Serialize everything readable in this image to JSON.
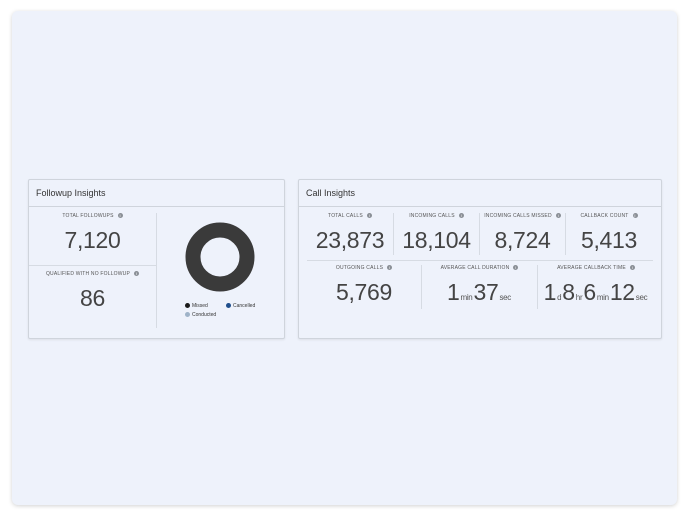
{
  "followup": {
    "title": "Followup Insights",
    "total_label": "TOTAL FOLLOWUPS",
    "total_value": "7,120",
    "qualified_label": "QUALIFIED WITH NO FOLLOWUP",
    "qualified_value": "86",
    "legend": [
      {
        "label": "Missed",
        "color": "#1a1a1a"
      },
      {
        "label": "Cancelled",
        "color": "#1f4e8c"
      },
      {
        "label": "Conducted",
        "color": "#9fb3c8"
      }
    ],
    "donut_color": "#3a3a3a"
  },
  "calls": {
    "title": "Call Insights",
    "total_label": "TOTAL CALLS",
    "total_value": "23,873",
    "incoming_label": "INCOMING CALLS",
    "incoming_value": "18,104",
    "missed_label": "INCOMING CALLS MISSED",
    "missed_value": "8,724",
    "callback_label": "CALLBACK COUNT",
    "callback_value": "5,413",
    "outgoing_label": "OUTGOING CALLS",
    "outgoing_value": "5,769",
    "avg_duration_label": "AVERAGE CALL DURATION",
    "avg_duration": {
      "min": "1",
      "min_unit": "min",
      "sec": "37",
      "sec_unit": "sec"
    },
    "avg_callback_label": "AVERAGE CALLBACK TIME",
    "avg_callback": {
      "d": "1",
      "d_unit": "d",
      "hr": "8",
      "hr_unit": "hr",
      "min": "6",
      "min_unit": "min",
      "sec": "12",
      "sec_unit": "sec"
    }
  },
  "info_icon": "info-icon"
}
